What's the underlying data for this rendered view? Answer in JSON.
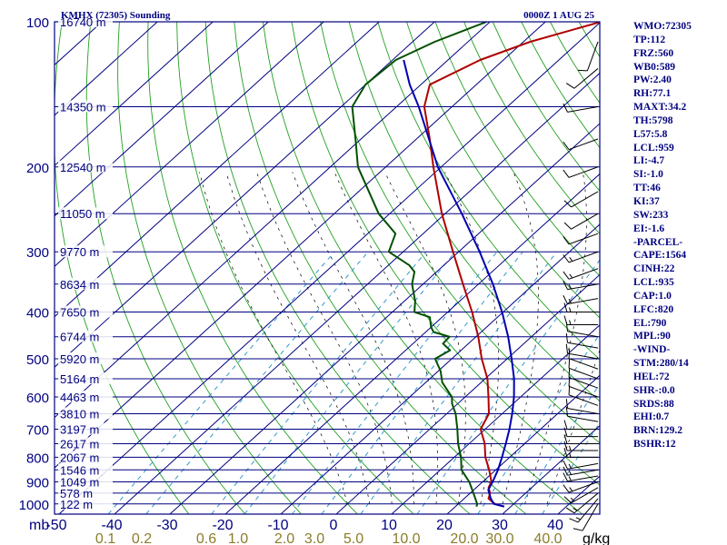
{
  "header": {
    "station": "KMHX (72305) Sounding",
    "valid_time": "0000Z  1 AUG 25"
  },
  "indices": [
    "WMO:72305",
    "TP:112",
    "FRZ:560",
    "WB0:589",
    "PW:2.40",
    "RH:77.1",
    "MAXT:34.2",
    "TH:5798",
    "L57:5.8",
    "LCL:959",
    "LI:-4.7",
    "SI:-1.0",
    "TT:46",
    "KI:37",
    "SW:233",
    "EI:-1.6",
    "-PARCEL-",
    "CAPE:1564",
    "CINH:22",
    "LCL:935",
    "CAP:1.0",
    "LFC:820",
    "EL:790",
    "MPL:90",
    "-WIND-",
    "STM:280/14",
    "HEL:72",
    "SHR-:0.0",
    "SRDS:88",
    "EHI:0.7",
    "BRN:129.2",
    "BSHR:12"
  ],
  "colors": {
    "frame": "#000080",
    "isobar": "#000080",
    "isotherm": "#000080",
    "dry_adiabat": "#22a022",
    "moist_adiabat": "#000000",
    "mixing_ratio": "#3399cc",
    "temperature": "#b00000",
    "dewpoint": "#005000",
    "parcel": "#0000b0",
    "wind_barb": "#000000",
    "mixing_label": "#8b7d2a"
  },
  "chart_data": {
    "type": "skew-t log-p sounding",
    "pressure_axis": {
      "ticks": [
        "100",
        "200",
        "300",
        "400",
        "500",
        "600",
        "700",
        "800",
        "900",
        "1000"
      ],
      "unit": "mb",
      "range_mb": [
        100,
        1000
      ],
      "log_scale": true
    },
    "temperature_axis": {
      "ticks": [
        "-50",
        "-40",
        "-30",
        "-20",
        "-10",
        "0",
        "10",
        "20",
        "30",
        "40"
      ],
      "unit": "°C",
      "range_c": [
        -50,
        50
      ]
    },
    "mixing_ratio_axis": {
      "ticks": [
        "0.1",
        "0.2",
        "0.6",
        "1.0",
        "2.0",
        "3.0",
        "5.0",
        "10.0",
        "20.0",
        "30.0",
        "40.0"
      ],
      "unit": "g/kg"
    },
    "height_labels": [
      {
        "p": 100,
        "text": "16740 m"
      },
      {
        "p": 150,
        "text": "14350 m"
      },
      {
        "p": 200,
        "text": "12540 m"
      },
      {
        "p": 250,
        "text": "11050 m"
      },
      {
        "p": 300,
        "text": "9770 m"
      },
      {
        "p": 350,
        "text": "8634 m"
      },
      {
        "p": 400,
        "text": "7650 m"
      },
      {
        "p": 450,
        "text": "6744 m"
      },
      {
        "p": 500,
        "text": "5920 m"
      },
      {
        "p": 550,
        "text": "5164 m"
      },
      {
        "p": 600,
        "text": "4463 m"
      },
      {
        "p": 650,
        "text": "3810 m"
      },
      {
        "p": 700,
        "text": "3197 m"
      },
      {
        "p": 750,
        "text": "2617 m"
      },
      {
        "p": 800,
        "text": "2067 m"
      },
      {
        "p": 850,
        "text": "1546 m"
      },
      {
        "p": 900,
        "text": "1049 m"
      },
      {
        "p": 950,
        "text": "578 m"
      },
      {
        "p": 1000,
        "text": "122 m"
      }
    ],
    "isobars_mb": [
      100,
      150,
      200,
      250,
      300,
      350,
      400,
      450,
      500,
      550,
      600,
      650,
      700,
      750,
      800,
      850,
      900,
      950,
      1000
    ],
    "series": [
      {
        "key": "temperature",
        "points": [
          [
            1013,
            28.8
          ],
          [
            1000,
            26.6
          ],
          [
            975,
            24.4
          ],
          [
            950,
            23.6
          ],
          [
            925,
            22.2
          ],
          [
            900,
            21.6
          ],
          [
            850,
            18.8
          ],
          [
            800,
            15.6
          ],
          [
            750,
            12.8
          ],
          [
            700,
            9.2
          ],
          [
            650,
            7.6
          ],
          [
            600,
            4.2
          ],
          [
            550,
            0.4
          ],
          [
            500,
            -4.6
          ],
          [
            450,
            -9.6
          ],
          [
            400,
            -15.6
          ],
          [
            350,
            -22.8
          ],
          [
            300,
            -31.0
          ],
          [
            250,
            -40.6
          ],
          [
            200,
            -51.4
          ],
          [
            175,
            -57.6
          ],
          [
            150,
            -65.0
          ],
          [
            135,
            -68.4
          ],
          [
            120,
            -64.2
          ],
          [
            110,
            -58.8
          ],
          [
            100,
            -50.0
          ]
        ]
      },
      {
        "key": "dewpoint",
        "points": [
          [
            1013,
            23.8
          ],
          [
            1000,
            23.4
          ],
          [
            950,
            20.6
          ],
          [
            900,
            17.6
          ],
          [
            850,
            13.8
          ],
          [
            800,
            11.2
          ],
          [
            750,
            8.0
          ],
          [
            700,
            5.0
          ],
          [
            650,
            1.6
          ],
          [
            620,
            -1.0
          ],
          [
            600,
            -2.4
          ],
          [
            560,
            -7.0
          ],
          [
            530,
            -9.6
          ],
          [
            500,
            -13.0
          ],
          [
            480,
            -12.0
          ],
          [
            465,
            -14.6
          ],
          [
            450,
            -14.8
          ],
          [
            440,
            -18.6
          ],
          [
            430,
            -20.0
          ],
          [
            410,
            -22.2
          ],
          [
            400,
            -26.0
          ],
          [
            390,
            -27.0
          ],
          [
            380,
            -28.0
          ],
          [
            350,
            -32.0
          ],
          [
            330,
            -34.0
          ],
          [
            320,
            -36.2
          ],
          [
            300,
            -42.6
          ],
          [
            275,
            -45.0
          ],
          [
            250,
            -52.0
          ],
          [
            200,
            -65.0
          ],
          [
            175,
            -71.0
          ],
          [
            150,
            -78.0
          ],
          [
            135,
            -80.0
          ],
          [
            120,
            -79.4
          ],
          [
            110,
            -76.0
          ],
          [
            100,
            -70.6
          ]
        ]
      },
      {
        "key": "parcel",
        "points": [
          [
            1013,
            28.8
          ],
          [
            1000,
            26.4
          ],
          [
            975,
            24.8
          ],
          [
            935,
            22.6
          ],
          [
            900,
            21.8
          ],
          [
            850,
            20.4
          ],
          [
            800,
            18.6
          ],
          [
            750,
            16.6
          ],
          [
            700,
            14.4
          ],
          [
            650,
            11.8
          ],
          [
            600,
            8.8
          ],
          [
            550,
            5.2
          ],
          [
            500,
            0.8
          ],
          [
            450,
            -4.2
          ],
          [
            400,
            -10.2
          ],
          [
            350,
            -17.4
          ],
          [
            300,
            -26.2
          ],
          [
            250,
            -37.0
          ],
          [
            200,
            -50.6
          ],
          [
            150,
            -66.0
          ],
          [
            135,
            -72.0
          ],
          [
            120,
            -78.0
          ]
        ]
      }
    ],
    "wind_barbs": [
      {
        "p": 1000,
        "dir": 210,
        "speed_kt": 10
      },
      {
        "p": 975,
        "dir": 220,
        "speed_kt": 15
      },
      {
        "p": 950,
        "dir": 230,
        "speed_kt": 15
      },
      {
        "p": 925,
        "dir": 240,
        "speed_kt": 15
      },
      {
        "p": 900,
        "dir": 250,
        "speed_kt": 15
      },
      {
        "p": 875,
        "dir": 260,
        "speed_kt": 15
      },
      {
        "p": 850,
        "dir": 260,
        "speed_kt": 15
      },
      {
        "p": 825,
        "dir": 260,
        "speed_kt": 15
      },
      {
        "p": 800,
        "dir": 270,
        "speed_kt": 15
      },
      {
        "p": 775,
        "dir": 270,
        "speed_kt": 15
      },
      {
        "p": 750,
        "dir": 270,
        "speed_kt": 10
      },
      {
        "p": 725,
        "dir": 270,
        "speed_kt": 10
      },
      {
        "p": 700,
        "dir": 270,
        "speed_kt": 10
      },
      {
        "p": 675,
        "dir": 280,
        "speed_kt": 10
      },
      {
        "p": 650,
        "dir": 280,
        "speed_kt": 10
      },
      {
        "p": 625,
        "dir": 290,
        "speed_kt": 10
      },
      {
        "p": 600,
        "dir": 290,
        "speed_kt": 10
      },
      {
        "p": 575,
        "dir": 290,
        "speed_kt": 10
      },
      {
        "p": 550,
        "dir": 290,
        "speed_kt": 10
      },
      {
        "p": 525,
        "dir": 290,
        "speed_kt": 10
      },
      {
        "p": 500,
        "dir": 280,
        "speed_kt": 10
      },
      {
        "p": 475,
        "dir": 280,
        "speed_kt": 10
      },
      {
        "p": 450,
        "dir": 280,
        "speed_kt": 10
      },
      {
        "p": 425,
        "dir": 270,
        "speed_kt": 15
      },
      {
        "p": 400,
        "dir": 270,
        "speed_kt": 15
      },
      {
        "p": 375,
        "dir": 260,
        "speed_kt": 15
      },
      {
        "p": 350,
        "dir": 260,
        "speed_kt": 15
      },
      {
        "p": 325,
        "dir": 250,
        "speed_kt": 15
      },
      {
        "p": 300,
        "dir": 250,
        "speed_kt": 15
      },
      {
        "p": 275,
        "dir": 250,
        "speed_kt": 10
      },
      {
        "p": 250,
        "dir": 240,
        "speed_kt": 10
      },
      {
        "p": 225,
        "dir": 240,
        "speed_kt": 10
      },
      {
        "p": 200,
        "dir": 250,
        "speed_kt": 10
      },
      {
        "p": 175,
        "dir": 250,
        "speed_kt": 10
      },
      {
        "p": 150,
        "dir": 260,
        "speed_kt": 10
      },
      {
        "p": 125,
        "dir": 230,
        "speed_kt": 10
      },
      {
        "p": 110,
        "dir": 200,
        "speed_kt": 10
      }
    ],
    "dry_adiabats_theta_c": [
      -30,
      -20,
      -10,
      0,
      10,
      20,
      30,
      40,
      50,
      60,
      70,
      80,
      90,
      100,
      110,
      120,
      130,
      140,
      150,
      160,
      170,
      180,
      190,
      200,
      210
    ],
    "moist_adiabats_thetaw_c": [
      0,
      4,
      8,
      12,
      16,
      20,
      24,
      28,
      32,
      36
    ],
    "mixing_ratio_lines_gkg": [
      0.1,
      0.2,
      0.6,
      1.0,
      2.0,
      3.0,
      5.0,
      10.0,
      20.0,
      30.0,
      40.0
    ]
  }
}
